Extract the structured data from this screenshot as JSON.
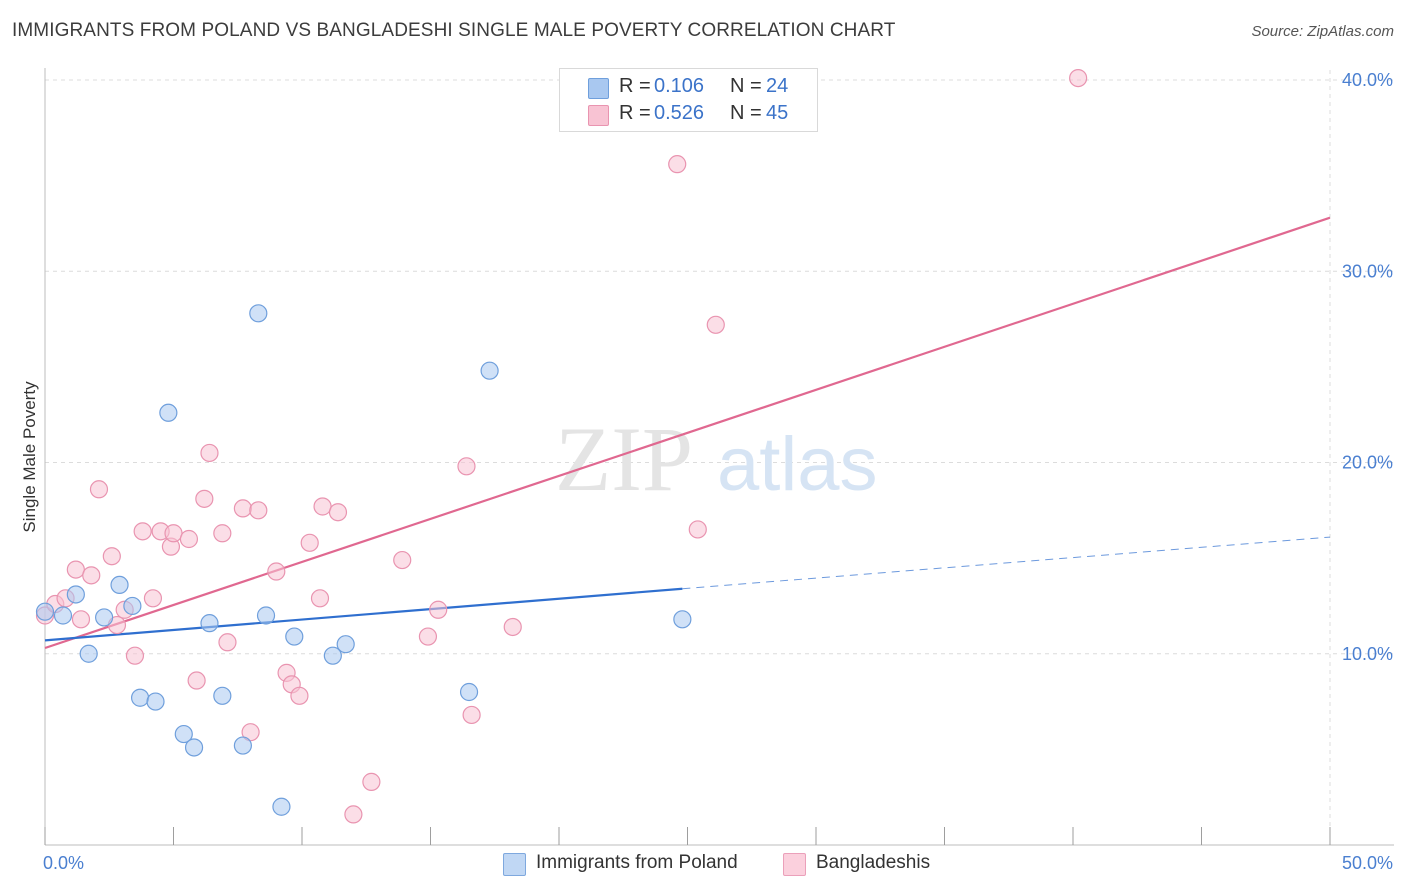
{
  "title": "IMMIGRANTS FROM POLAND VS BANGLADESHI SINGLE MALE POVERTY CORRELATION CHART",
  "source": "Source: ZipAtlas.com",
  "watermark": {
    "zip": "ZIP",
    "atlas": "atlas"
  },
  "legend": {
    "r_label": "R =",
    "n_label": "N =",
    "rows": [
      {
        "r": "0.106",
        "n": "24",
        "color": "#a9c8f0",
        "border": "#6f9fdc"
      },
      {
        "r": "0.526",
        "n": "45",
        "color": "#f8c3d3",
        "border": "#e994b0"
      }
    ]
  },
  "bottom_legend": [
    {
      "label": "Immigrants from Poland",
      "color": "#c0d7f4",
      "border": "#7ea8de"
    },
    {
      "label": "Bangladeshis",
      "color": "#fbd0dd",
      "border": "#eba0ba"
    }
  ],
  "colors": {
    "poland": "#2f6fcf",
    "bangladeshi": "#e06890",
    "tick_text": "#4a7fd0",
    "grid": "#dcdcdc"
  },
  "chart_data": {
    "type": "scatter",
    "title": "IMMIGRANTS FROM POLAND VS BANGLADESHI SINGLE MALE POVERTY CORRELATION CHART",
    "xlabel": "",
    "ylabel": "Single Male Poverty",
    "xlim": [
      0,
      50
    ],
    "ylim": [
      0,
      40
    ],
    "x_tick_labels": [
      "0.0%",
      "50.0%"
    ],
    "y_ticks": [
      10,
      20,
      30,
      40
    ],
    "y_tick_labels": [
      "10.0%",
      "20.0%",
      "30.0%",
      "40.0%"
    ],
    "grid": true,
    "legend_position": "top-center",
    "series": [
      {
        "name": "Immigrants from Poland",
        "r": 0.106,
        "n": 24,
        "points": [
          [
            0.0,
            12.2
          ],
          [
            0.7,
            12.0
          ],
          [
            1.2,
            13.1
          ],
          [
            1.7,
            10.0
          ],
          [
            2.3,
            11.9
          ],
          [
            2.9,
            13.6
          ],
          [
            3.4,
            12.5
          ],
          [
            3.7,
            7.7
          ],
          [
            4.3,
            7.5
          ],
          [
            4.8,
            22.6
          ],
          [
            5.4,
            5.8
          ],
          [
            5.8,
            5.1
          ],
          [
            6.4,
            11.6
          ],
          [
            6.9,
            7.8
          ],
          [
            7.7,
            5.2
          ],
          [
            8.3,
            27.8
          ],
          [
            8.6,
            12.0
          ],
          [
            9.2,
            2.0
          ],
          [
            9.7,
            10.9
          ],
          [
            11.2,
            9.9
          ],
          [
            11.7,
            10.5
          ],
          [
            16.5,
            8.0
          ],
          [
            17.3,
            24.8
          ],
          [
            24.8,
            11.8
          ]
        ],
        "trend_solid": [
          [
            0.0,
            10.7
          ],
          [
            24.8,
            13.4
          ]
        ],
        "trend_dashed": [
          [
            24.8,
            13.4
          ],
          [
            50.0,
            16.1
          ]
        ]
      },
      {
        "name": "Bangladeshis",
        "r": 0.526,
        "n": 45,
        "points": [
          [
            0.0,
            12.0
          ],
          [
            0.4,
            12.6
          ],
          [
            0.8,
            12.9
          ],
          [
            1.2,
            14.4
          ],
          [
            1.4,
            11.8
          ],
          [
            1.8,
            14.1
          ],
          [
            2.1,
            18.6
          ],
          [
            2.6,
            15.1
          ],
          [
            2.8,
            11.5
          ],
          [
            3.1,
            12.3
          ],
          [
            3.5,
            9.9
          ],
          [
            3.8,
            16.4
          ],
          [
            4.2,
            12.9
          ],
          [
            4.5,
            16.4
          ],
          [
            4.9,
            15.6
          ],
          [
            5.0,
            16.3
          ],
          [
            5.6,
            16.0
          ],
          [
            5.9,
            8.6
          ],
          [
            6.2,
            18.1
          ],
          [
            6.4,
            20.5
          ],
          [
            6.9,
            16.3
          ],
          [
            7.1,
            10.6
          ],
          [
            7.7,
            17.6
          ],
          [
            8.0,
            5.9
          ],
          [
            8.3,
            17.5
          ],
          [
            9.0,
            14.3
          ],
          [
            9.4,
            9.0
          ],
          [
            9.6,
            8.4
          ],
          [
            9.9,
            7.8
          ],
          [
            10.3,
            15.8
          ],
          [
            10.7,
            12.9
          ],
          [
            10.8,
            17.7
          ],
          [
            11.4,
            17.4
          ],
          [
            12.7,
            3.3
          ],
          [
            12.0,
            1.6
          ],
          [
            13.9,
            14.9
          ],
          [
            14.9,
            10.9
          ],
          [
            15.3,
            12.3
          ],
          [
            16.4,
            19.8
          ],
          [
            16.6,
            6.8
          ],
          [
            18.2,
            11.4
          ],
          [
            24.6,
            35.6
          ],
          [
            25.4,
            16.5
          ],
          [
            26.1,
            27.2
          ],
          [
            40.2,
            40.1
          ]
        ],
        "trend_solid": [
          [
            0.0,
            10.3
          ],
          [
            50.0,
            32.8
          ]
        ]
      }
    ]
  }
}
